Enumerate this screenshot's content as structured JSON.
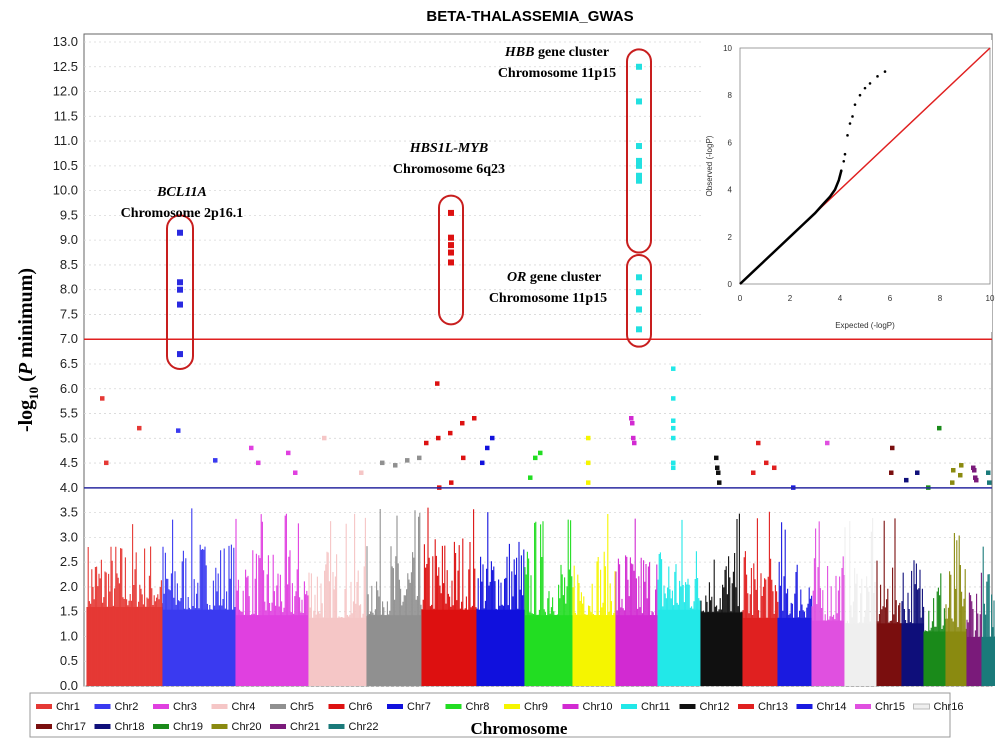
{
  "chart_data": {
    "type": "scatter",
    "title": "BETA-THALASSEMIA_GWAS",
    "xlabel": "Chromosome",
    "ylabel_main": "-log",
    "ylabel_sub": "10",
    "ylabel_p": "P",
    "ylabel_rest": " minimum)",
    "ylim": [
      0,
      13
    ],
    "yticks": [
      "0.0",
      "0.5",
      "1.0",
      "1.5",
      "2.0",
      "2.5",
      "3.0",
      "3.5",
      "4.0",
      "4.5",
      "5.0",
      "5.5",
      "6.0",
      "6.5",
      "7.0",
      "7.5",
      "8.0",
      "8.5",
      "9.0",
      "9.5",
      "10.0",
      "10.5",
      "11.0",
      "11.5",
      "12.0",
      "12.5",
      "13.0"
    ],
    "genome_wide_threshold": 7.0,
    "suggestive_threshold": 4.0,
    "grid": true,
    "legend_placement": "bottom",
    "chromosomes": [
      {
        "name": "Chr1",
        "color": "#e53935",
        "bg": 2.9,
        "tall": 3.5,
        "hits": [
          5.8,
          5.2,
          4.5
        ]
      },
      {
        "name": "Chr2",
        "color": "#3a3af0",
        "bg": 2.8,
        "tall": 3.6,
        "hits": [
          5.15,
          4.55
        ]
      },
      {
        "name": "Chr3",
        "color": "#e040e0",
        "bg": 2.6,
        "tall": 3.5,
        "hits": [
          4.8,
          4.7,
          4.5,
          4.3
        ]
      },
      {
        "name": "Chr4",
        "color": "#f5c6c6",
        "bg": 2.5,
        "tall": 3.5,
        "hits": [
          5.0,
          4.3
        ]
      },
      {
        "name": "Chr5",
        "color": "#909090",
        "bg": 2.6,
        "tall": 3.6,
        "hits": [
          4.5,
          4.6,
          4.55,
          4.45
        ]
      },
      {
        "name": "Chr6",
        "color": "#dd1111",
        "bg": 2.8,
        "tall": 3.8,
        "hits": [
          6.1,
          5.4,
          5.3,
          5.1,
          5.0,
          4.9,
          4.6,
          4.1,
          4.0
        ]
      },
      {
        "name": "Chr7",
        "color": "#1111dd",
        "bg": 2.8,
        "tall": 3.7,
        "hits": [
          5.0,
          4.8,
          4.5
        ]
      },
      {
        "name": "Chr8",
        "color": "#22dd22",
        "bg": 2.6,
        "tall": 3.5,
        "hits": [
          4.7,
          4.6,
          4.2
        ]
      },
      {
        "name": "Chr9",
        "color": "#f5f500",
        "bg": 2.6,
        "tall": 3.5,
        "hits": [
          5.0,
          4.5,
          4.1
        ]
      },
      {
        "name": "Chr10",
        "color": "#d22ad2",
        "bg": 2.6,
        "tall": 3.5,
        "hits": [
          5.4,
          5.3,
          5.0,
          4.9
        ]
      },
      {
        "name": "Chr11",
        "color": "#22e8e8",
        "bg": 2.8,
        "tall": 3.6,
        "hits": [
          6.4,
          5.8,
          5.35,
          5.2,
          5.0,
          4.5,
          4.4
        ]
      },
      {
        "name": "Chr12",
        "color": "#111111",
        "bg": 2.7,
        "tall": 3.5,
        "hits": [
          4.6,
          4.4,
          4.3,
          4.1
        ]
      },
      {
        "name": "Chr13",
        "color": "#e02020",
        "bg": 2.5,
        "tall": 3.6,
        "hits": [
          4.9,
          4.5,
          4.4,
          4.3
        ]
      },
      {
        "name": "Chr14",
        "color": "#1a1ae0",
        "bg": 2.5,
        "tall": 3.4,
        "hits": [
          4.0
        ]
      },
      {
        "name": "Chr15",
        "color": "#e050e0",
        "bg": 2.4,
        "tall": 3.4,
        "hits": [
          4.9
        ]
      },
      {
        "name": "Chr16",
        "color": "#efefef",
        "bg": 2.3,
        "tall": 3.4,
        "hits": []
      },
      {
        "name": "Chr17",
        "color": "#7a0f0f",
        "bg": 2.3,
        "tall": 3.4,
        "hits": [
          4.8,
          4.3
        ]
      },
      {
        "name": "Chr18",
        "color": "#0f0f7a",
        "bg": 2.3,
        "tall": 3.3,
        "hits": [
          4.3,
          4.15
        ]
      },
      {
        "name": "Chr19",
        "color": "#1a8a1a",
        "bg": 2.0,
        "tall": 3.2,
        "hits": [
          5.2,
          4.0
        ]
      },
      {
        "name": "Chr20",
        "color": "#8a8a10",
        "bg": 2.0,
        "tall": 3.2,
        "hits": [
          4.45,
          4.35,
          4.25,
          4.1
        ]
      },
      {
        "name": "Chr21",
        "color": "#7a1a7a",
        "bg": 1.8,
        "tall": 3.0,
        "hits": [
          4.4,
          4.35,
          4.2,
          4.15
        ]
      },
      {
        "name": "Chr22",
        "color": "#1a7a7a",
        "bg": 1.8,
        "tall": 3.0,
        "hits": [
          4.3,
          4.1
        ]
      }
    ],
    "significant_loci": [
      {
        "chromosome": "Chr2",
        "values": [
          9.15,
          8.15,
          8.0,
          7.7,
          6.7
        ]
      },
      {
        "chromosome": "Chr6",
        "values": [
          9.55,
          9.05,
          8.9,
          8.75,
          8.55
        ]
      },
      {
        "chromosome": "Chr11",
        "values": [
          12.5,
          11.8,
          10.9,
          10.6,
          10.5,
          10.3,
          10.2
        ]
      },
      {
        "chromosome": "Chr11b",
        "values": [
          8.25,
          7.95,
          7.6,
          7.2
        ]
      }
    ],
    "annotations": [
      {
        "id": "bcl11a",
        "gene": "BCL11A",
        "gene_italic": true,
        "line2": "Chromosome 2p16.1"
      },
      {
        "id": "hbs1l",
        "gene": "HBS1L-MYB",
        "gene_italic": true,
        "line2": "Chromosome 6q23"
      },
      {
        "id": "hbb",
        "gene": "HBB",
        "gene_italic": true,
        "gene_suffix": " gene cluster",
        "line2": "Chromosome 11p15"
      },
      {
        "id": "or",
        "gene": "OR",
        "gene_italic": true,
        "gene_suffix": " gene cluster",
        "line2": "Chromosome 11p15"
      }
    ],
    "inset_qq": {
      "type": "line",
      "xlabel": "Expected (-logP)",
      "ylabel": "Observed (-logP)",
      "xlim": [
        0,
        10
      ],
      "ylim": [
        0,
        10
      ],
      "xticks": [
        "0",
        "2",
        "4",
        "6",
        "8",
        "10"
      ],
      "yticks": [
        "0",
        "2",
        "4",
        "6",
        "8",
        "10"
      ],
      "reference_line_color": "#e02020",
      "points": [
        [
          0,
          0
        ],
        [
          0.5,
          0.5
        ],
        [
          1,
          1
        ],
        [
          1.5,
          1.5
        ],
        [
          2,
          2
        ],
        [
          2.5,
          2.5
        ],
        [
          3,
          3
        ],
        [
          3.3,
          3.35
        ],
        [
          3.6,
          3.7
        ],
        [
          3.8,
          4.0
        ],
        [
          3.95,
          4.4
        ],
        [
          4.05,
          4.8
        ],
        [
          4.15,
          5.2
        ],
        [
          4.2,
          5.5
        ],
        [
          4.3,
          6.3
        ],
        [
          4.4,
          6.8
        ],
        [
          4.5,
          7.1
        ],
        [
          4.6,
          7.6
        ],
        [
          4.8,
          8.0
        ],
        [
          5.0,
          8.3
        ],
        [
          5.2,
          8.5
        ],
        [
          5.5,
          8.8
        ],
        [
          5.8,
          9.0
        ]
      ]
    }
  }
}
